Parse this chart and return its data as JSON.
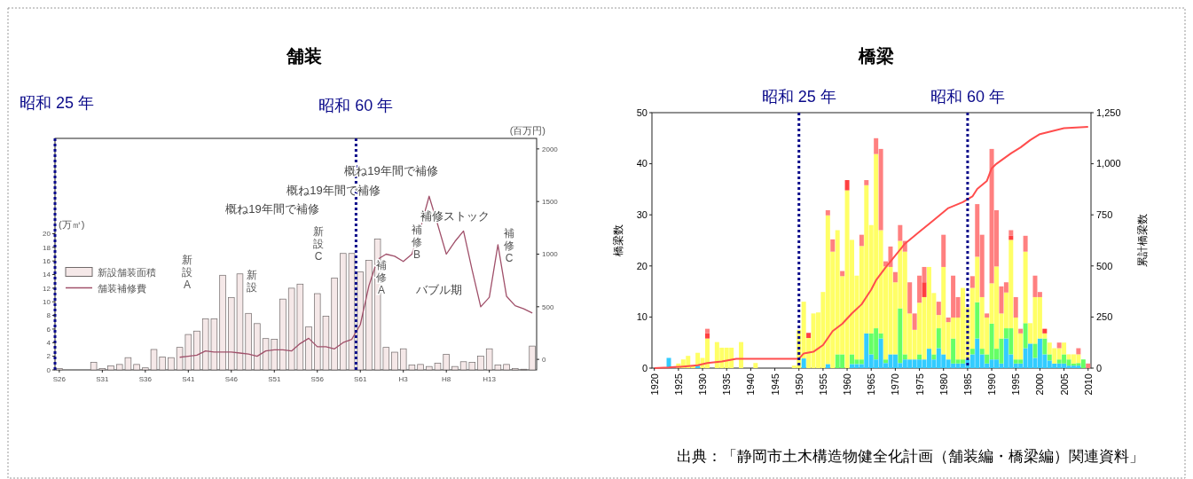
{
  "chart_data": [
    {
      "type": "bar",
      "title": "舗装",
      "ylabel": "(万㎡)",
      "y2label": "(百万円)",
      "legend": "left",
      "categories": [
        "S26",
        null,
        null,
        null,
        null,
        "S31",
        null,
        null,
        null,
        null,
        "S36",
        null,
        null,
        null,
        null,
        "S41",
        null,
        null,
        null,
        null,
        "S46",
        null,
        null,
        null,
        null,
        "S51",
        null,
        null,
        null,
        null,
        "S56",
        null,
        null,
        null,
        null,
        "S61",
        null,
        null,
        null,
        null,
        "H3",
        null,
        null,
        null,
        null,
        "H8",
        null,
        null,
        null,
        null,
        "H13",
        null,
        null,
        null,
        null,
        null
      ],
      "ylim": [
        0,
        34
      ],
      "yticks": [
        0,
        2,
        4,
        6,
        8,
        10,
        12,
        14,
        16,
        18,
        20
      ],
      "y2lim": [
        -100,
        2100
      ],
      "y2ticks": [
        0,
        500,
        1000,
        1500,
        2000
      ],
      "series": [
        {
          "name": "新設舗装面積",
          "color": "#f5e8e8",
          "values": [
            0.2,
            0,
            0,
            0,
            1.1,
            0.2,
            0.6,
            0.8,
            1.8,
            0.8,
            0.3,
            3.0,
            1.9,
            1.8,
            3.3,
            5.2,
            5.7,
            7.5,
            7.5,
            13.9,
            10.6,
            14.1,
            8.3,
            6.8,
            4.6,
            4.5,
            10.4,
            12.0,
            12.6,
            6.3,
            11.2,
            7.9,
            13.5,
            17.1,
            17.1,
            14.4,
            16.1,
            19.2,
            3.3,
            2.6,
            3.1,
            0.7,
            0.8,
            0.5,
            1.0,
            2.3,
            0.5,
            1.2,
            1.1,
            2.0,
            3.1,
            0.7,
            0.8,
            0.2,
            0.1,
            3.5
          ]
        },
        {
          "name": "舗装補修費",
          "type": "line",
          "axis": "y2",
          "color": "#a0506a",
          "values": [
            null,
            null,
            null,
            null,
            null,
            null,
            null,
            null,
            null,
            null,
            null,
            null,
            null,
            null,
            20,
            30,
            40,
            80,
            70,
            70,
            70,
            60,
            50,
            30,
            80,
            90,
            90,
            80,
            150,
            200,
            120,
            120,
            100,
            160,
            190,
            330,
            700,
            950,
            1000,
            980,
            930,
            1000,
            1250,
            1550,
            1280,
            1000,
            1120,
            1220,
            850,
            500,
            590,
            1090,
            600,
            510,
            480,
            440
          ]
        }
      ],
      "ref_lines": [
        {
          "axis": "x",
          "value": "S26",
          "label": "昭和 25 年",
          "color": "#0a0a8a",
          "line_style": "dotted"
        },
        {
          "axis": "x",
          "value": "S61",
          "label": "昭和 60 年",
          "color": "#0a0a8a",
          "line_style": "dotted"
        }
      ],
      "annotations": [
        "概ね19年間で補修",
        "概ね19年間で補修",
        "概ね19年間で補修",
        "補修ストック",
        "バブル期",
        "新設A",
        "新設",
        "新設C",
        "補修A",
        "補修B",
        "補修C"
      ]
    },
    {
      "type": "bar",
      "title": "橋梁",
      "ylabel": "橋梁数",
      "y2label": "累計橋梁数",
      "stacked": true,
      "x": [
        1920,
        1921,
        1922,
        1923,
        1924,
        1925,
        1926,
        1927,
        1928,
        1929,
        1930,
        1931,
        1932,
        1933,
        1934,
        1935,
        1936,
        1937,
        1938,
        1939,
        1940,
        1941,
        1942,
        1943,
        1944,
        1945,
        1946,
        1947,
        1948,
        1949,
        1950,
        1951,
        1952,
        1953,
        1954,
        1955,
        1956,
        1957,
        1958,
        1959,
        1960,
        1961,
        1962,
        1963,
        1964,
        1965,
        1966,
        1967,
        1968,
        1969,
        1970,
        1971,
        1972,
        1973,
        1974,
        1975,
        1976,
        1977,
        1978,
        1979,
        1980,
        1981,
        1982,
        1983,
        1984,
        1985,
        1986,
        1987,
        1988,
        1989,
        1990,
        1991,
        1992,
        1993,
        1994,
        1995,
        1996,
        1997,
        1998,
        1999,
        2000,
        2001,
        2002,
        2003,
        2004,
        2005,
        2006,
        2007,
        2008,
        2009,
        2010
      ],
      "xlim": [
        1919.5,
        2010.6
      ],
      "xticks": [
        1920,
        1925,
        1930,
        1935,
        1940,
        1945,
        1950,
        1955,
        1960,
        1965,
        1970,
        1975,
        1980,
        1985,
        1990,
        1995,
        2000,
        2005,
        2010
      ],
      "ylim": [
        0,
        50
      ],
      "yticks": [
        0,
        10,
        20,
        30,
        40,
        50
      ],
      "y2lim": [
        0,
        1250
      ],
      "y2ticks": [
        0,
        250,
        500,
        750,
        {
          "value": 1000,
          "label": "1,000"
        },
        {
          "value": 1250,
          "label": "1,250"
        }
      ],
      "series": [
        {
          "color": "#33ccff",
          "values": [
            0,
            0,
            0,
            2,
            0,
            0,
            0,
            null,
            0,
            0.5,
            0,
            0,
            0,
            0,
            0,
            0,
            0,
            0,
            0,
            0,
            0,
            0,
            0,
            0,
            0,
            0,
            0,
            0,
            0,
            0,
            0,
            1.9,
            0,
            0,
            0,
            0,
            0.8,
            0,
            0,
            0,
            0,
            0.8,
            0.8,
            0.8,
            6.8,
            2.7,
            1.7,
            5.8,
            1.0,
            2.7,
            2.7,
            1.0,
            1.7,
            1.7,
            1.7,
            1.7,
            1.7,
            3.8,
            1.7,
            3.9,
            2.7,
            1.7,
            0.9,
            0.9,
            0.9,
            1.7,
            2.7,
            5.8,
            2.7,
            0.9,
            1.7,
            1.7,
            0.9,
            5.8,
            2.7,
            0.9,
            0.9,
            3.9,
            4.8,
            2.0,
            5.8,
            2.7,
            1.5,
            0.9,
            0.9,
            0.9,
            0.5,
            0.5,
            0.5,
            0,
            0
          ]
        },
        {
          "color": "#66ff66",
          "values": [
            0,
            0,
            0,
            0,
            0,
            0,
            0,
            0,
            0,
            0,
            0,
            0,
            0,
            0,
            0,
            0,
            0,
            0,
            0,
            0,
            0,
            0,
            0,
            0,
            0,
            0,
            0,
            0,
            0,
            0,
            0,
            0,
            0,
            0,
            0,
            0,
            0,
            0,
            2.7,
            2.7,
            0,
            1.9,
            0.9,
            0.9,
            0,
            4.1,
            6.1,
            1.0,
            0.7,
            0,
            0,
            10.7,
            1.0,
            0,
            0,
            1.0,
            0,
            0,
            1.0,
            3.9,
            0,
            0,
            4.9,
            0.8,
            0.8,
            0,
            1.1,
            7.1,
            1.1,
            1.8,
            7.0,
            2.1,
            4.9,
            2.0,
            5.1,
            0.8,
            0.8,
            4.9,
            0,
            2.8,
            0,
            3.1,
            1.2,
            0,
            0.8,
            1.8,
            1.2,
            0.4,
            0.5,
            1.7,
            0
          ]
        },
        {
          "color": "#ffff66",
          "values": [
            0,
            0,
            0,
            0,
            null,
            0.9,
            1.7,
            2.4,
            0.5,
            2.5,
            2.0,
            5.8,
            0,
            5.1,
            4,
            4,
            4,
            0,
            5.1,
            0,
            0,
            1.0,
            0,
            0,
            0,
            0,
            0,
            0,
            0,
            0.5,
            7.5,
            11.1,
            5.9,
            10.7,
            10.9,
            14.9,
            29.1,
            22.8,
            24.3,
            15.3,
            34.8,
            22.4,
            16.4,
            22.2,
            29.0,
            21.2,
            34.1,
            20.2,
            18.2,
            17.1,
            14.1,
            13.2,
            20.1,
            9.0,
            5.8,
            10.1,
            12.2,
            16.0,
            12.0,
            2.6,
            17.1,
            7.3,
            4.1,
            8.2,
            14.0,
            10.2,
            11.9,
            8.9,
            10.1,
            7.2,
            7.9,
            16.1,
            4.9,
            7.0,
            17.3,
            8.2,
            5.1,
            14.0,
            4.0,
            9.1,
            8.1,
            1.0,
            2.3,
            3.0,
            2.2,
            2.3,
            1.0,
            1.8,
            1.7,
            0,
            0
          ]
        },
        {
          "color": "#ff4040",
          "values": [
            0,
            0,
            0,
            0,
            0,
            0,
            0,
            0,
            0,
            0,
            0,
            1.0,
            0,
            0,
            0,
            0,
            0,
            0,
            0,
            0,
            0,
            0,
            0,
            0,
            0,
            0,
            0,
            0,
            0,
            0,
            0,
            0,
            1.0,
            0,
            0,
            0,
            0,
            0,
            0,
            0,
            2.0,
            0,
            0,
            0,
            0,
            0,
            0,
            0,
            0,
            0,
            0,
            0,
            0,
            0,
            0,
            0,
            2.9,
            0,
            0,
            0,
            0,
            0,
            0,
            0,
            0,
            0,
            0,
            0,
            0,
            0,
            0,
            0,
            0,
            0,
            0.8,
            0,
            0,
            0,
            0,
            0,
            0,
            0.9,
            0,
            0,
            0,
            0,
            0,
            0,
            0,
            0,
            0
          ]
        },
        {
          "color": "#ff8080",
          "values": [
            0,
            0,
            0,
            0,
            0,
            0,
            0,
            0,
            0,
            0,
            0,
            0.9,
            0,
            0,
            0,
            0,
            0,
            0,
            0,
            0,
            0,
            0,
            0,
            0,
            0,
            0,
            0,
            0,
            0,
            0,
            0,
            0,
            0,
            0,
            0,
            0,
            1.0,
            2.4,
            0,
            1.0,
            0,
            0,
            0,
            2.2,
            1.0,
            0,
            3.1,
            15.9,
            1.0,
            4.0,
            2.0,
            3.1,
            2.1,
            6.1,
            3.2,
            5.3,
            3.0,
            0,
            0,
            2.6,
            6.3,
            0.9,
            8.2,
            4.0,
            0,
            0,
            2.3,
            10.3,
            12.2,
            0.8,
            26.3,
            11.0,
            5.3,
            2.0,
            1.1,
            4.0,
            0.9,
            3.1,
            0,
            4.2,
            1.0,
            0,
            0,
            0,
            1.1,
            0,
            0,
            0,
            1.2,
            0,
            0.9
          ]
        },
        {
          "type": "line",
          "axis": "y2",
          "color": "#ff4d4d",
          "x": [
            1920,
            1923,
            1926,
            1929,
            1931,
            1934,
            1937,
            1949,
            1950,
            1951,
            1953,
            1955,
            1957,
            1959,
            1961,
            1963,
            1964,
            1965,
            1966,
            1968,
            1972,
            1975,
            1978,
            1981,
            1984,
            1986,
            1987,
            1989,
            1990,
            1991,
            1994,
            1996,
            1998,
            2000,
            2005,
            2010
          ],
          "values": [
            0,
            3,
            8,
            14,
            25,
            33,
            46,
            46,
            46,
            72,
            80,
            113,
            181,
            217,
            268,
            312,
            348,
            384,
            430,
            493,
            609,
            667,
            725,
            783,
            812,
            840,
            877,
            916,
            978,
            1000,
            1051,
            1080,
            1116,
            1145,
            1174,
            1181
          ]
        }
      ],
      "ref_lines": [
        {
          "axis": "x",
          "value": 1950,
          "label": "昭和 25 年",
          "color": "#0a0a8a",
          "line_style": "dotted"
        },
        {
          "axis": "x",
          "value": 1985,
          "label": "昭和 60 年",
          "color": "#0a0a8a",
          "line_style": "dotted"
        }
      ],
      "annotations": [
        "出典：「静岡市土木構造物健全化計画（舗装編・橋梁編）関連資料」"
      ]
    }
  ]
}
